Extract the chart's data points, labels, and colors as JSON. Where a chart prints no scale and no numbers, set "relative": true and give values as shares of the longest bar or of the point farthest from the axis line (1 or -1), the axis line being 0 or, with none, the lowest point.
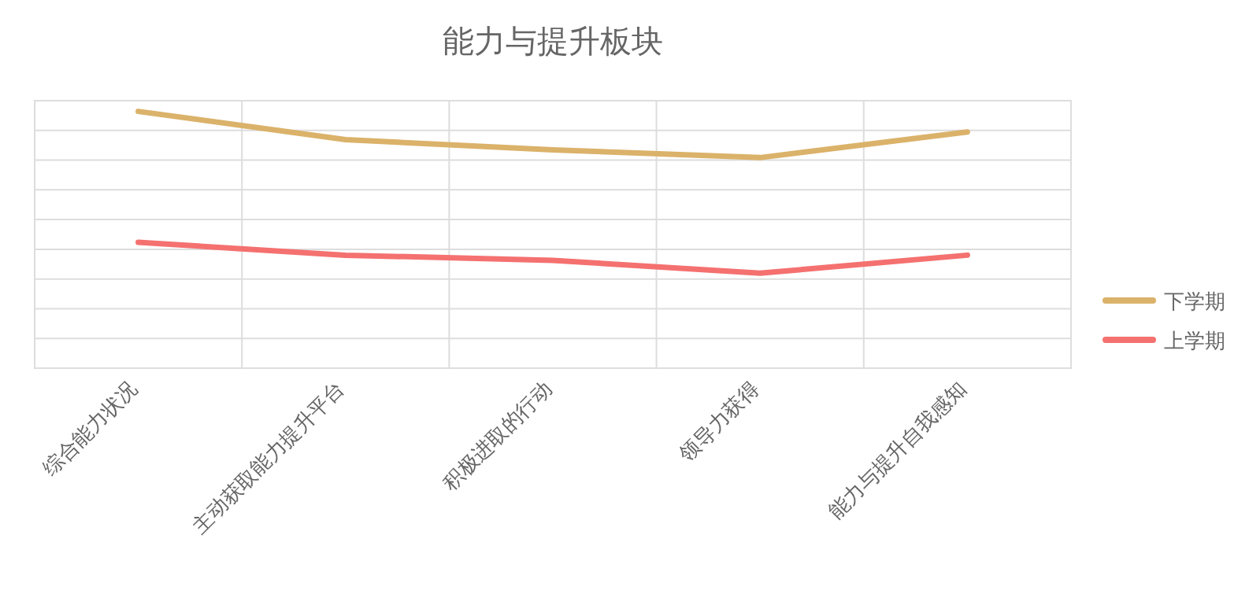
{
  "chart_data": {
    "type": "line",
    "title": "能力与提升板块",
    "relative": true,
    "grid": true,
    "legend": "right",
    "marker": "none",
    "line_style": "solid",
    "categories": [
      "综合能力状况",
      "主动获取能力提升平台",
      "积极进取的行动",
      "领导力获得",
      "能力与提升自我感知"
    ],
    "series": [
      {
        "name": "下学期",
        "color": "#dbb26a",
        "values": [
          1,
          0.89,
          0.85,
          0.82,
          0.92
        ]
      },
      {
        "name": "上学期",
        "color": "#f47170",
        "values": [
          0.49,
          0.44,
          0.42,
          0.37,
          0.44
        ]
      }
    ]
  }
}
